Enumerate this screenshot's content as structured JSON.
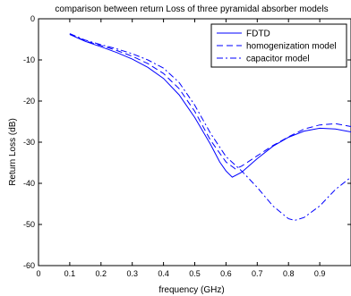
{
  "chart_data": {
    "type": "line",
    "title": "comparison between return Loss of three pyramidal absorber models",
    "xlabel": "frequency (GHz)",
    "ylabel": "Return Loss (dB)",
    "xlim": [
      0,
      1.0
    ],
    "ylim": [
      -60,
      0
    ],
    "xticks": [
      0,
      0.1,
      0.2,
      0.3,
      0.4,
      0.5,
      0.6,
      0.7,
      0.8,
      0.9
    ],
    "xtick_labels": [
      "0",
      "0.1",
      "0.2",
      "0.3",
      "0.4",
      "0.5",
      "0.6",
      "0.7",
      "0.8",
      "0.9"
    ],
    "yticks": [
      0,
      -10,
      -20,
      -30,
      -40,
      -50,
      -60
    ],
    "ytick_labels": [
      "0",
      "-10",
      "-20",
      "-30",
      "-40",
      "-50",
      "-60"
    ],
    "grid": false,
    "legend_position": "top-right",
    "line_color": "#0000ff",
    "series": [
      {
        "name": "FDTD",
        "style": "solid",
        "x": [
          0.1,
          0.15,
          0.2,
          0.25,
          0.3,
          0.35,
          0.4,
          0.45,
          0.5,
          0.55,
          0.58,
          0.6,
          0.62,
          0.65,
          0.7,
          0.75,
          0.8,
          0.85,
          0.9,
          0.95,
          1.0
        ],
        "y": [
          -3.8,
          -5.5,
          -6.8,
          -8.2,
          -9.8,
          -11.8,
          -14.5,
          -18.5,
          -24.0,
          -30.5,
          -34.8,
          -37.0,
          -38.5,
          -37.3,
          -34.0,
          -31.0,
          -28.8,
          -27.3,
          -26.6,
          -26.8,
          -27.5
        ]
      },
      {
        "name": "homogenization model",
        "style": "dashed",
        "x": [
          0.1,
          0.15,
          0.2,
          0.25,
          0.3,
          0.35,
          0.4,
          0.45,
          0.5,
          0.55,
          0.6,
          0.63,
          0.65,
          0.7,
          0.75,
          0.8,
          0.85,
          0.9,
          0.95,
          1.0
        ],
        "y": [
          -3.7,
          -5.4,
          -6.5,
          -7.7,
          -9.1,
          -10.9,
          -13.3,
          -17.0,
          -22.5,
          -29.5,
          -34.8,
          -36.5,
          -35.8,
          -33.3,
          -30.8,
          -28.7,
          -26.8,
          -25.8,
          -25.5,
          -26.2
        ]
      },
      {
        "name": "capacitor model",
        "style": "dashdot",
        "x": [
          0.1,
          0.15,
          0.2,
          0.25,
          0.3,
          0.35,
          0.4,
          0.45,
          0.5,
          0.55,
          0.6,
          0.65,
          0.7,
          0.75,
          0.8,
          0.82,
          0.85,
          0.9,
          0.95,
          1.0
        ],
        "y": [
          -3.6,
          -5.2,
          -6.3,
          -7.3,
          -8.5,
          -10.0,
          -12.0,
          -15.5,
          -21.0,
          -27.8,
          -33.5,
          -37.0,
          -41.0,
          -45.5,
          -48.6,
          -49.0,
          -48.3,
          -45.5,
          -41.5,
          -38.5
        ]
      }
    ]
  }
}
